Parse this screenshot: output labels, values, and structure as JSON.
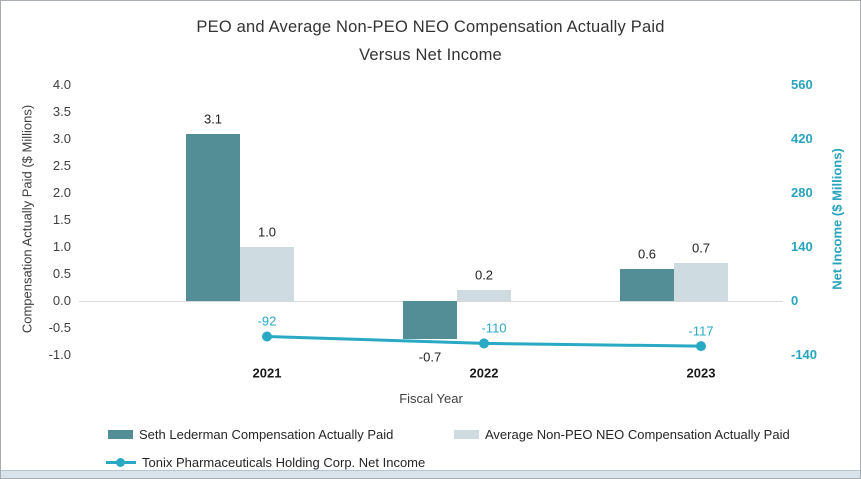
{
  "title": {
    "line1": "PEO and Average Non-PEO NEO Compensation Actually Paid",
    "line2": "Versus Net Income"
  },
  "chart_data": {
    "type": "combo-bar-line",
    "categories": [
      "2021",
      "2022",
      "2023"
    ],
    "series": [
      {
        "name": "Seth Lederman Compensation Actually Paid",
        "type": "bar",
        "axis": "left",
        "color": "#538d96",
        "values": [
          3.1,
          -0.7,
          0.6
        ],
        "labels": [
          "3.1",
          "-0.7",
          "0.6"
        ]
      },
      {
        "name": "Average Non-PEO NEO Compensation Actually Paid",
        "type": "bar",
        "axis": "left",
        "color": "#cedbe0",
        "values": [
          1.0,
          0.2,
          0.7
        ],
        "labels": [
          "1.0",
          "0.2",
          "0.7"
        ]
      },
      {
        "name": "Tonix Pharmaceuticals Holding Corp. Net Income",
        "type": "line",
        "axis": "right",
        "color": "#29a9c4",
        "values": [
          -92,
          -110,
          -117
        ],
        "labels": [
          "-92",
          "-110",
          "-117"
        ]
      }
    ],
    "left_axis": {
      "title": "Compensation Actually Paid ($ Millions)",
      "ticks": [
        "4.0",
        "3.5",
        "3.0",
        "2.5",
        "2.0",
        "1.5",
        "1.0",
        "0.5",
        "0.0",
        "-0.5",
        "-1.0"
      ],
      "min": -1.0,
      "max": 4.0
    },
    "right_axis": {
      "title": "Net Income ($ Millions)",
      "ticks": [
        "560",
        "420",
        "280",
        "140",
        "0",
        "-140"
      ],
      "min": -140,
      "max": 560,
      "color": "#2aa3bd"
    },
    "x_axis": {
      "title": "Fiscal Year"
    },
    "legend_position": "bottom",
    "grid": "zero-line-only"
  },
  "colors": {
    "axis_line": "#d9d9d9",
    "text": "#3f3f3f",
    "bottom_strip": "#d9e3eb",
    "frame_border": "#a8adb2"
  }
}
